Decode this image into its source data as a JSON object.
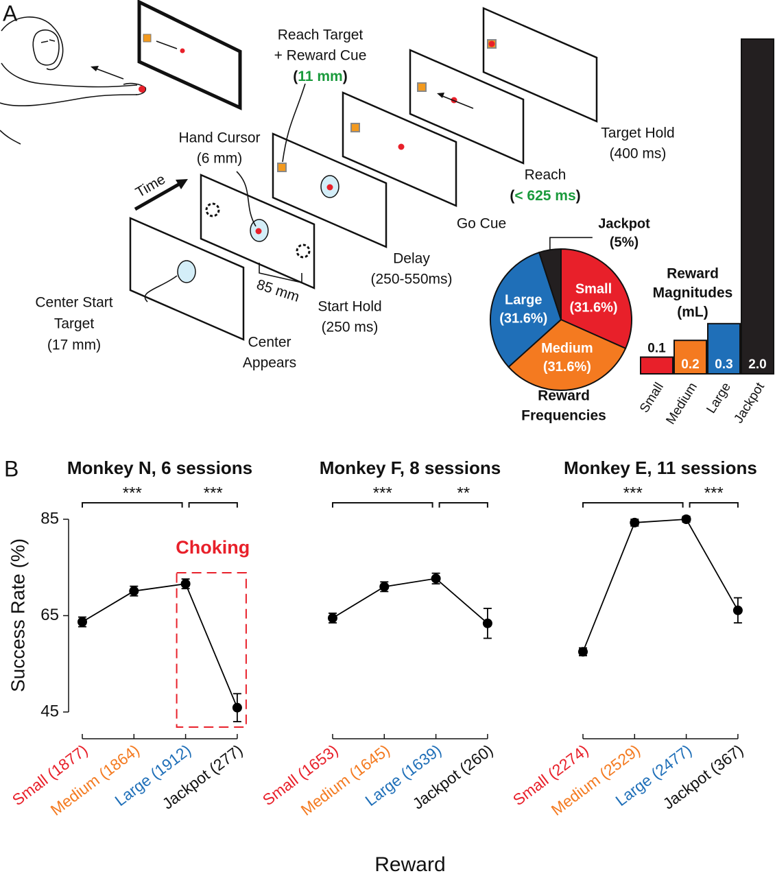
{
  "panel_labels": {
    "a": "A",
    "b": "B"
  },
  "task": {
    "time": "Time",
    "center_target": [
      "Center Start",
      "Target",
      "(17 mm)"
    ],
    "center_appears": [
      "Center",
      "Appears"
    ],
    "distance": "85 mm",
    "start_hold": [
      "Start Hold",
      "(250 ms)"
    ],
    "hand_cursor": [
      "Hand Cursor",
      "(6 mm)"
    ],
    "reach_target": [
      "Reach Target",
      "+ Reward Cue"
    ],
    "reach_target_size": [
      "(",
      "11 mm",
      ")"
    ],
    "delay": [
      "Delay",
      "(250-550ms)"
    ],
    "go_cue": "Go Cue",
    "reach": "Reach",
    "reach_time": [
      "(",
      "< 625 ms",
      ")"
    ],
    "target_hold": [
      "Target Hold",
      "(400 ms)"
    ],
    "highlight_color": "#1a9a3c"
  },
  "chart_data": [
    {
      "type": "pie",
      "title": [
        "Reward",
        "Frequencies"
      ],
      "categories": [
        "Small",
        "Medium",
        "Large",
        "Jackpot"
      ],
      "values": [
        31.6,
        31.6,
        31.6,
        5
      ],
      "value_labels": [
        "(31.6%)",
        "(31.6%)",
        "(31.6%)",
        "(5%)"
      ],
      "colors": [
        "#e8202a",
        "#f47a20",
        "#1f6fb8",
        "#231f20"
      ]
    },
    {
      "type": "bar",
      "title": [
        "Reward",
        "Magnitudes",
        "(mL)"
      ],
      "categories": [
        "Small",
        "Medium",
        "Large",
        "Jackpot"
      ],
      "values": [
        0.1,
        0.2,
        0.3,
        2.0
      ],
      "value_labels": [
        "0.1",
        "0.2",
        "0.3",
        "2.0"
      ],
      "colors": [
        "#e8202a",
        "#f47a20",
        "#1f6fb8",
        "#231f20"
      ]
    },
    {
      "type": "line",
      "title": "Monkey N, 6 sessions",
      "categories": [
        "Small (1877)",
        "Medium (1864)",
        "Large (1912)",
        "Jackpot (277)"
      ],
      "category_colors": [
        "#e8202a",
        "#f47a20",
        "#1f6fb8",
        "#111111"
      ],
      "values": [
        63.7,
        70.1,
        71.6,
        45.9
      ],
      "errors": [
        1.0,
        1.0,
        1.0,
        2.9
      ],
      "color": "#000000",
      "ylim": [
        45,
        85
      ],
      "yticks": [
        45,
        65,
        85
      ],
      "y_label": "Success Rate (%)",
      "significance": [
        "***",
        "***"
      ],
      "annotation": "Choking",
      "annotation_color": "#e8202a"
    },
    {
      "type": "line",
      "title": "Monkey F, 8 sessions",
      "categories": [
        "Small (1653)",
        "Medium (1645)",
        "Large (1639)",
        "Jackpot (260)"
      ],
      "category_colors": [
        "#e8202a",
        "#f47a20",
        "#1f6fb8",
        "#111111"
      ],
      "values": [
        64.5,
        71.0,
        72.7,
        63.4
      ],
      "errors": [
        1.0,
        1.0,
        1.1,
        3.1
      ],
      "color": "#000000",
      "ylim": [
        45,
        85
      ],
      "x_label": "Reward",
      "significance": [
        "***",
        "**"
      ]
    },
    {
      "type": "line",
      "title": "Monkey E, 11 sessions",
      "categories": [
        "Small (2274)",
        "Medium (2529)",
        "Large (2477)",
        "Jackpot (367)"
      ],
      "category_colors": [
        "#e8202a",
        "#f47a20",
        "#1f6fb8",
        "#111111"
      ],
      "values": [
        57.5,
        84.3,
        85.0,
        66.1
      ],
      "errors": [
        0.8,
        0.7,
        0.6,
        2.6
      ],
      "color": "#000000",
      "ylim": [
        45,
        85
      ],
      "significance": [
        "***",
        "***"
      ]
    }
  ]
}
